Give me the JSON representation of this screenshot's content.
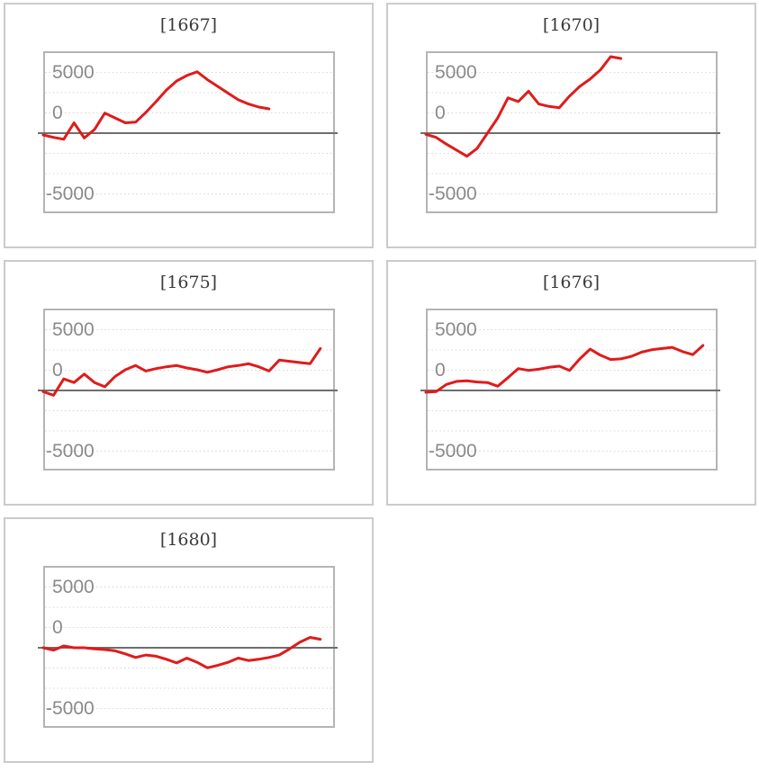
{
  "page": {
    "layout": "grid of 5 sparkline cards, 2 columns x 3 rows, last cell empty"
  },
  "colors": {
    "series_line": "#e01b1b",
    "zero_axis_line": "#6e6e6e",
    "axis_label_text": "#8a8a8a",
    "title_text": "#3b3b3b"
  },
  "chart_data": [
    {
      "type": "line",
      "title": "[1667]",
      "y_axis_labels": [
        "5000",
        "0",
        "-5000"
      ],
      "ylim": [
        -6600,
        6800
      ],
      "gridlines": 7,
      "gridline_style": "dotted-horizontal",
      "zero_line": true,
      "legend": "none",
      "x_axis_labels": "none",
      "values": [
        -150,
        -350,
        -500,
        850,
        -400,
        300,
        1650,
        1250,
        850,
        900,
        1700,
        2600,
        3550,
        4300,
        4750,
        5050,
        4400,
        3850,
        3300,
        2750,
        2400,
        2150,
        2000
      ]
    },
    {
      "type": "line",
      "title": "[1670]",
      "y_axis_labels": [
        "5000",
        "0",
        "-5000"
      ],
      "ylim": [
        -6600,
        6800
      ],
      "gridlines": 7,
      "gridline_style": "dotted-horizontal",
      "zero_line": true,
      "legend": "none",
      "x_axis_labels": "none",
      "values": [
        -100,
        -350,
        -900,
        -1400,
        -1900,
        -1250,
        0,
        1250,
        2900,
        2600,
        3450,
        2400,
        2200,
        2100,
        3050,
        3850,
        4450,
        5200,
        6300,
        6150
      ]
    },
    {
      "type": "line",
      "title": "[1675]",
      "y_axis_labels": [
        "5000",
        "0",
        "-5000"
      ],
      "ylim": [
        -6600,
        6800
      ],
      "gridlines": 7,
      "gridline_style": "dotted-horizontal",
      "zero_line": true,
      "legend": "none",
      "x_axis_labels": "none",
      "values": [
        -100,
        -400,
        950,
        650,
        1350,
        650,
        300,
        1150,
        1700,
        2050,
        1600,
        1800,
        1950,
        2050,
        1850,
        1700,
        1500,
        1700,
        1950,
        2050,
        2200,
        1950,
        1600,
        2500,
        2400,
        2300,
        2200,
        3450
      ]
    },
    {
      "type": "line",
      "title": "[1676]",
      "y_axis_labels": [
        "5000",
        "0",
        "-5000"
      ],
      "ylim": [
        -6600,
        6800
      ],
      "gridlines": 7,
      "gridline_style": "dotted-horizontal",
      "zero_line": true,
      "legend": "none",
      "x_axis_labels": "none",
      "values": [
        -150,
        -100,
        500,
        750,
        800,
        700,
        650,
        350,
        1050,
        1800,
        1650,
        1750,
        1900,
        2000,
        1650,
        2600,
        3400,
        2900,
        2550,
        2600,
        2800,
        3150,
        3350,
        3450,
        3550,
        3200,
        2950,
        3700
      ]
    },
    {
      "type": "line",
      "title": "[1680]",
      "y_axis_labels": [
        "5000",
        "0",
        "-5000"
      ],
      "ylim": [
        -6600,
        6800
      ],
      "gridlines": 7,
      "gridline_style": "dotted-horizontal",
      "zero_line": true,
      "legend": "none",
      "x_axis_labels": "none",
      "values": [
        0,
        -200,
        150,
        0,
        0,
        -100,
        -150,
        -250,
        -500,
        -800,
        -600,
        -700,
        -950,
        -1250,
        -850,
        -1200,
        -1650,
        -1450,
        -1200,
        -850,
        -1050,
        -950,
        -800,
        -600,
        -100,
        450,
        850,
        700
      ]
    }
  ]
}
